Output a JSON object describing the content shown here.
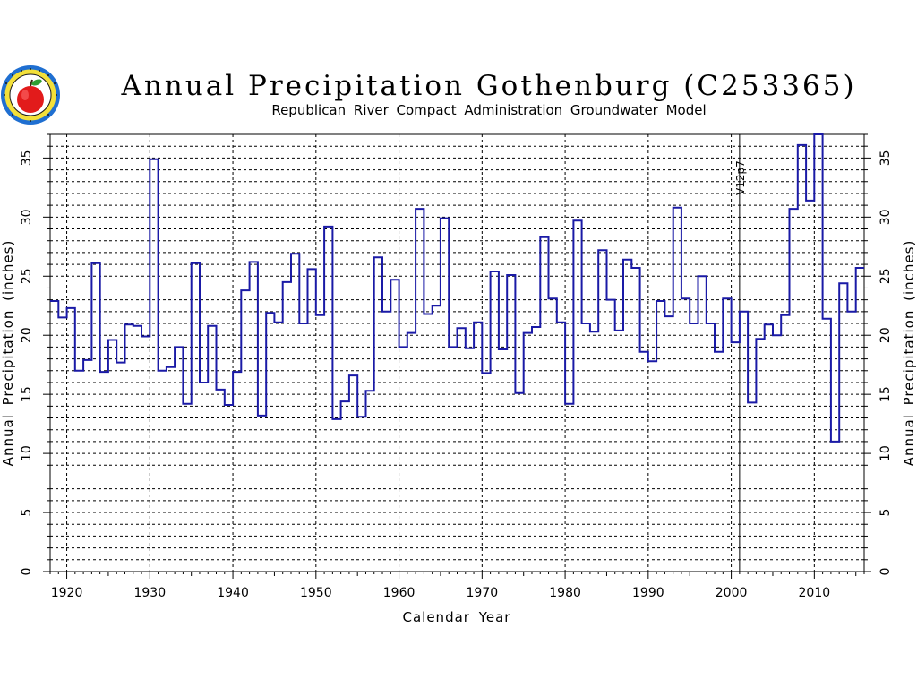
{
  "logo": {
    "icon": "apple-seal-icon"
  },
  "chart_data": {
    "type": "line",
    "style": "step",
    "title": "Annual Precipitation Gothenburg (C253365)",
    "subtitle": "Republican River Compact Administration Groundwater Model",
    "xlabel": "Calendar Year",
    "ylabel": "Annual Precipitation (inches)",
    "y2label": "Annual Precipitation (inches)",
    "xlim": [
      1918,
      2016
    ],
    "ylim": [
      0,
      37
    ],
    "xticks": [
      1920,
      1930,
      1940,
      1950,
      1960,
      1970,
      1980,
      1990,
      2000,
      2010
    ],
    "yticks": [
      0,
      5,
      10,
      15,
      20,
      25,
      30,
      35
    ],
    "grid": true,
    "line_color": "#1a1aa6",
    "annotation": {
      "x": 2001,
      "label": "V12p7"
    },
    "series": [
      {
        "x": [
          1918,
          1919,
          1920,
          1921,
          1922,
          1923,
          1924,
          1925,
          1926,
          1927,
          1928,
          1929,
          1930,
          1931,
          1932,
          1933,
          1934,
          1935,
          1936,
          1937,
          1938,
          1939,
          1940,
          1941,
          1942,
          1943,
          1944,
          1945,
          1946,
          1947,
          1948,
          1949,
          1950,
          1951,
          1952,
          1953,
          1954,
          1955,
          1956,
          1957,
          1958,
          1959,
          1960,
          1961,
          1962,
          1963,
          1964,
          1965,
          1966,
          1967,
          1968,
          1969,
          1970,
          1971,
          1972,
          1973,
          1974,
          1975,
          1976,
          1977,
          1978,
          1979,
          1980,
          1981,
          1982,
          1983,
          1984,
          1985,
          1986,
          1987,
          1988,
          1989,
          1990,
          1991,
          1992,
          1993,
          1994,
          1995,
          1996,
          1997,
          1998,
          1999,
          2000,
          2001,
          2002,
          2003,
          2004,
          2005,
          2006,
          2007,
          2008,
          2009,
          2010,
          2011,
          2012,
          2013,
          2014,
          2015
        ],
        "values": [
          22.9,
          21.5,
          22.3,
          17.0,
          17.9,
          26.1,
          16.9,
          19.6,
          17.7,
          20.9,
          20.8,
          19.9,
          34.9,
          17.0,
          17.3,
          19.0,
          14.2,
          26.1,
          16.0,
          20.8,
          15.4,
          14.1,
          16.9,
          23.8,
          26.2,
          13.2,
          21.9,
          21.1,
          24.5,
          26.9,
          21.0,
          25.6,
          21.7,
          29.2,
          12.9,
          14.4,
          16.6,
          13.1,
          15.3,
          26.6,
          22.0,
          24.7,
          19.0,
          20.2,
          30.7,
          21.8,
          22.5,
          29.9,
          19.0,
          20.6,
          18.9,
          21.1,
          16.8,
          25.4,
          18.8,
          25.1,
          15.1,
          20.2,
          20.7,
          28.3,
          23.1,
          21.1,
          14.2,
          29.7,
          21.0,
          20.3,
          27.2,
          23.0,
          20.4,
          26.4,
          25.7,
          18.6,
          17.8,
          22.9,
          21.6,
          30.8,
          23.1,
          21.0,
          25.0,
          21.0,
          18.6,
          23.1,
          19.4,
          22.0,
          14.3,
          19.7,
          20.9,
          20.0,
          21.7,
          30.7,
          36.1,
          31.4,
          37.0,
          21.4,
          11.0,
          24.4,
          22.0,
          25.7
        ]
      }
    ]
  }
}
